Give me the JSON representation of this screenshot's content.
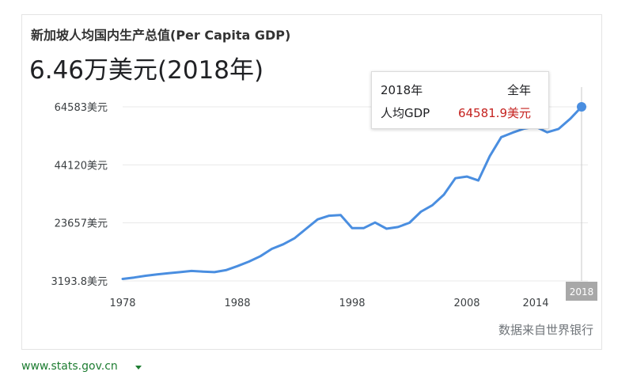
{
  "card": {
    "title": "新加坡人均国内生产总值(Per Capita GDP)",
    "headline": "6.46万美元(2018年)",
    "source": "数据来自世界银行"
  },
  "tooltip": {
    "year": "2018年",
    "range": "全年",
    "metric": "人均GDP",
    "value": "64581.9美元"
  },
  "site": {
    "label": "www.stats.gov.cn"
  },
  "colors": {
    "line": "#4a8ee0",
    "grid": "#e8e8e8",
    "axis_text": "#3c4043",
    "highlight_label_bg": "#a8a8a8",
    "tooltip_value": "#c5221f"
  },
  "chart_data": {
    "type": "line",
    "title": "新加坡人均国内生产总值(Per Capita GDP)",
    "ylim": [
      3193.8,
      64583
    ],
    "yticks": [
      3193.8,
      23657,
      44120,
      64583
    ],
    "ytick_labels": [
      "3193.8美元",
      "23657美元",
      "44120美元",
      "64583美元"
    ],
    "xlim": [
      1978,
      2018
    ],
    "xticks": [
      1978,
      1988,
      1998,
      2008,
      2014
    ],
    "xtick_labels": [
      "1978",
      "1988",
      "1998",
      "2008",
      "2014"
    ],
    "highlight_x": 2018,
    "highlight_label": "2018",
    "grid": true,
    "series": [
      {
        "x": [
          1978,
          1979,
          1980,
          1981,
          1982,
          1983,
          1984,
          1985,
          1986,
          1987,
          1988,
          1989,
          1990,
          1991,
          1992,
          1993,
          1994,
          1995,
          1996,
          1997,
          1998,
          1999,
          2000,
          2001,
          2002,
          2003,
          2004,
          2005,
          2006,
          2007,
          2008,
          2009,
          2010,
          2011,
          2012,
          2013,
          2014,
          2015,
          2016,
          2017,
          2018
        ],
        "y": [
          3900,
          4400,
          5000,
          5500,
          5900,
          6300,
          6700,
          6500,
          6300,
          7000,
          8400,
          10000,
          11900,
          14500,
          16100,
          18300,
          21600,
          24900,
          26200,
          26400,
          21800,
          21800,
          23800,
          21600,
          22200,
          23700,
          27600,
          29900,
          33600,
          39400,
          40000,
          38600,
          47200,
          53900,
          55500,
          56900,
          57600,
          55600,
          56800,
          60300,
          64581.9
        ]
      }
    ]
  }
}
